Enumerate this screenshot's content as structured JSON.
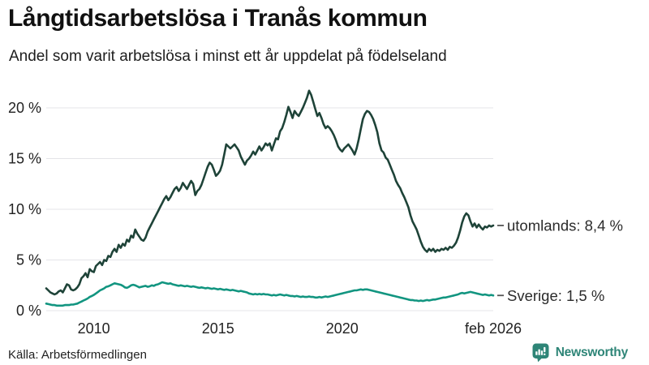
{
  "header": {
    "title": "Långtidsarbetslösa i Tranås kommun",
    "subtitle": "Andel som varit arbetslösa i minst ett år uppdelat på födelseland"
  },
  "footer": {
    "source": "Källa: Arbetsförmedlingen",
    "brand": "Newsworthy",
    "brand_color": "#2E8577"
  },
  "chart_data": {
    "type": "line",
    "title": "Långtidsarbetslösa i Tranås kommun",
    "subtitle": "Andel som varit arbetslösa i minst ett år uppdelat på födelseland",
    "x_unit": "monthly",
    "x_start_year": 2008.0833,
    "x_end_year": 2026.0833,
    "x_start_label": "feb 2008",
    "x_end_label": "feb 2026",
    "points_per_year": 12,
    "ylim": [
      0,
      22
    ],
    "grid": true,
    "grid_color": "#e4e4e8",
    "axis_text_color": "#222222",
    "label_dash_color": "#555555",
    "y_ticks": [
      {
        "value": 0,
        "label": "0 %"
      },
      {
        "value": 5,
        "label": "5 %"
      },
      {
        "value": 10,
        "label": "10 %"
      },
      {
        "value": 15,
        "label": "15 %"
      },
      {
        "value": 20,
        "label": "20 %"
      }
    ],
    "x_ticks": [
      {
        "year": 2010,
        "label": "2010"
      },
      {
        "year": 2015,
        "label": "2015"
      },
      {
        "year": 2020,
        "label": "2020"
      },
      {
        "year": 2026.0833,
        "label": "feb 2026"
      }
    ],
    "series": [
      {
        "name": "utomlands",
        "color": "#1E4338",
        "end_label": "utomlands: 8,4 %",
        "last_value": 8.4,
        "values": [
          2.2,
          2.0,
          1.8,
          1.7,
          1.6,
          1.7,
          1.9,
          2.0,
          1.8,
          2.2,
          2.6,
          2.5,
          2.1,
          2.0,
          2.1,
          2.3,
          2.6,
          3.2,
          3.4,
          3.7,
          3.3,
          4.1,
          3.9,
          3.8,
          4.4,
          4.6,
          4.8,
          4.5,
          5.0,
          4.9,
          5.4,
          5.3,
          5.8,
          6.1,
          5.8,
          6.5,
          6.2,
          6.6,
          6.4,
          7.0,
          6.8,
          7.4,
          7.2,
          8.0,
          7.6,
          7.3,
          7.0,
          6.9,
          7.2,
          7.8,
          8.2,
          8.6,
          9.0,
          9.4,
          9.8,
          10.2,
          10.6,
          11.0,
          11.3,
          10.9,
          11.2,
          11.6,
          12.0,
          12.2,
          11.8,
          12.1,
          12.6,
          12.3,
          12.0,
          12.4,
          12.8,
          12.5,
          11.4,
          11.8,
          12.0,
          12.4,
          13.0,
          13.6,
          14.2,
          14.6,
          14.4,
          13.9,
          13.3,
          13.5,
          13.8,
          14.4,
          15.4,
          16.4,
          16.2,
          16.0,
          16.2,
          16.4,
          16.1,
          15.8,
          15.2,
          14.8,
          14.4,
          14.8,
          15.0,
          15.3,
          15.7,
          15.4,
          15.8,
          16.2,
          15.8,
          16.1,
          16.5,
          16.3,
          16.5,
          15.8,
          16.4,
          17.0,
          16.9,
          17.7,
          18.0,
          18.6,
          19.3,
          20.1,
          19.6,
          19.0,
          19.7,
          19.4,
          19.2,
          19.6,
          20.0,
          20.5,
          21.0,
          21.7,
          21.3,
          20.6,
          19.9,
          19.2,
          19.5,
          19.0,
          18.4,
          18.0,
          18.2,
          18.0,
          17.7,
          17.3,
          16.8,
          16.2,
          15.9,
          15.7,
          16.0,
          16.2,
          16.4,
          16.1,
          15.8,
          15.4,
          16.0,
          16.9,
          17.9,
          18.9,
          19.4,
          19.7,
          19.6,
          19.3,
          18.9,
          18.3,
          17.6,
          16.5,
          15.8,
          15.6,
          15.1,
          14.9,
          14.4,
          13.9,
          13.4,
          12.8,
          12.4,
          12.1,
          11.6,
          11.2,
          10.7,
          10.2,
          9.4,
          8.8,
          8.4,
          8.0,
          7.4,
          6.8,
          6.3,
          6.0,
          5.8,
          6.1,
          5.9,
          6.1,
          5.8,
          6.0,
          5.9,
          6.1,
          6.0,
          6.2,
          6.0,
          6.3,
          6.2,
          6.4,
          6.7,
          7.2,
          7.9,
          8.7,
          9.3,
          9.6,
          9.4,
          8.8,
          8.3,
          8.6,
          8.2,
          8.5,
          8.2,
          8.0,
          8.3,
          8.2,
          8.4,
          8.3,
          8.4
        ]
      },
      {
        "name": "Sverige",
        "color": "#129580",
        "end_label": "Sverige: 1,5 %",
        "last_value": 1.5,
        "values": [
          0.7,
          0.65,
          0.6,
          0.55,
          0.55,
          0.5,
          0.5,
          0.5,
          0.5,
          0.55,
          0.55,
          0.55,
          0.6,
          0.6,
          0.65,
          0.7,
          0.8,
          0.9,
          1.0,
          1.1,
          1.2,
          1.35,
          1.45,
          1.55,
          1.7,
          1.85,
          2.0,
          2.1,
          2.2,
          2.35,
          2.4,
          2.5,
          2.6,
          2.7,
          2.65,
          2.6,
          2.55,
          2.45,
          2.3,
          2.25,
          2.35,
          2.5,
          2.55,
          2.5,
          2.4,
          2.3,
          2.35,
          2.4,
          2.45,
          2.35,
          2.4,
          2.5,
          2.45,
          2.55,
          2.6,
          2.7,
          2.8,
          2.75,
          2.7,
          2.65,
          2.7,
          2.6,
          2.55,
          2.5,
          2.45,
          2.5,
          2.45,
          2.4,
          2.45,
          2.4,
          2.35,
          2.4,
          2.35,
          2.3,
          2.25,
          2.3,
          2.25,
          2.2,
          2.25,
          2.2,
          2.15,
          2.2,
          2.15,
          2.1,
          2.15,
          2.1,
          2.05,
          2.1,
          2.05,
          2.0,
          2.05,
          2.0,
          1.95,
          1.9,
          1.95,
          1.9,
          1.85,
          1.8,
          1.7,
          1.65,
          1.6,
          1.65,
          1.6,
          1.65,
          1.6,
          1.65,
          1.6,
          1.6,
          1.55,
          1.5,
          1.55,
          1.5,
          1.55,
          1.6,
          1.55,
          1.5,
          1.55,
          1.5,
          1.45,
          1.45,
          1.4,
          1.45,
          1.4,
          1.35,
          1.4,
          1.35,
          1.35,
          1.4,
          1.35,
          1.35,
          1.3,
          1.3,
          1.35,
          1.3,
          1.35,
          1.4,
          1.35,
          1.4,
          1.45,
          1.5,
          1.55,
          1.6,
          1.65,
          1.7,
          1.75,
          1.8,
          1.85,
          1.9,
          1.95,
          2.0,
          2.0,
          2.05,
          2.1,
          2.05,
          2.1,
          2.1,
          2.05,
          2.0,
          1.95,
          1.9,
          1.85,
          1.8,
          1.75,
          1.7,
          1.65,
          1.6,
          1.55,
          1.5,
          1.45,
          1.4,
          1.35,
          1.3,
          1.25,
          1.2,
          1.15,
          1.1,
          1.05,
          1.05,
          1.0,
          1.0,
          0.95,
          1.0,
          0.95,
          1.0,
          1.05,
          1.0,
          1.05,
          1.1,
          1.1,
          1.15,
          1.2,
          1.25,
          1.3,
          1.3,
          1.35,
          1.4,
          1.45,
          1.5,
          1.55,
          1.6,
          1.7,
          1.75,
          1.7,
          1.75,
          1.8,
          1.85,
          1.8,
          1.75,
          1.7,
          1.65,
          1.6,
          1.55,
          1.6,
          1.55,
          1.5,
          1.55,
          1.5
        ]
      }
    ]
  }
}
